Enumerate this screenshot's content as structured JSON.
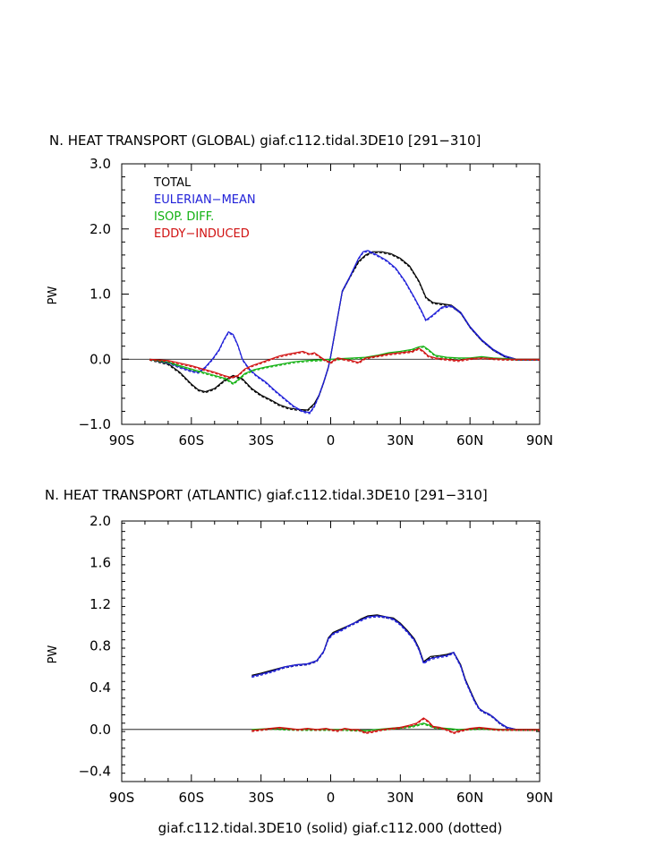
{
  "footer": "giaf.c112.tidal.3DE10 (solid) giaf.c112.000 (dotted)",
  "colors": {
    "total": "#000000",
    "eulerian": "#1f1fd8",
    "isop": "#10b010",
    "eddy": "#d01010"
  },
  "chart_data": [
    {
      "type": "line",
      "title": "N. HEAT TRANSPORT (GLOBAL) giaf.c112.tidal.3DE10 [291−310]",
      "ylabel": "PW",
      "xlim": [
        -90,
        90
      ],
      "ylim": [
        -1.0,
        3.0
      ],
      "xticks": [
        -90,
        -60,
        -30,
        0,
        30,
        60,
        90
      ],
      "xticklabels": [
        "90S",
        "60S",
        "30S",
        "0",
        "30N",
        "60N",
        "90N"
      ],
      "yticks": [
        -1.0,
        0.0,
        1.0,
        2.0,
        3.0
      ],
      "yticklabels": [
        "−1.0",
        "0.0",
        "1.0",
        "2.0",
        "3.0"
      ],
      "legend": [
        "TOTAL",
        "EULERIAN−MEAN",
        "ISOP. DIFF.",
        "EDDY−INDUCED"
      ],
      "series": [
        {
          "name": "TOTAL",
          "color": "total",
          "x": [
            -78,
            -70,
            -65,
            -60,
            -57,
            -54,
            -50,
            -46,
            -42,
            -38,
            -34,
            -30,
            -26,
            -22,
            -18,
            -14,
            -10,
            -7,
            -5,
            -3,
            -1,
            0,
            2,
            5,
            8,
            12,
            15,
            18,
            22,
            26,
            30,
            34,
            38,
            41,
            44,
            48,
            52,
            56,
            60,
            65,
            70,
            75,
            80,
            85,
            90
          ],
          "y": [
            0.0,
            -0.07,
            -0.2,
            -0.38,
            -0.47,
            -0.5,
            -0.45,
            -0.33,
            -0.25,
            -0.3,
            -0.45,
            -0.55,
            -0.62,
            -0.7,
            -0.75,
            -0.77,
            -0.78,
            -0.68,
            -0.55,
            -0.35,
            -0.12,
            0.05,
            0.45,
            1.05,
            1.25,
            1.5,
            1.6,
            1.65,
            1.65,
            1.62,
            1.55,
            1.43,
            1.2,
            0.95,
            0.87,
            0.85,
            0.83,
            0.72,
            0.5,
            0.3,
            0.15,
            0.05,
            0.0,
            0.0,
            0.0
          ]
        },
        {
          "name": "EULERIAN−MEAN",
          "color": "eulerian",
          "x": [
            -78,
            -70,
            -65,
            -60,
            -57,
            -54,
            -51,
            -48,
            -46,
            -44,
            -42,
            -40,
            -38,
            -35,
            -32,
            -28,
            -24,
            -20,
            -16,
            -12,
            -9,
            -7,
            -5,
            -3,
            -1,
            0,
            2,
            5,
            8,
            12,
            14,
            16,
            20,
            24,
            28,
            32,
            36,
            39,
            41,
            44,
            48,
            52,
            56,
            60,
            65,
            70,
            75,
            80,
            85,
            90
          ],
          "y": [
            0.0,
            -0.05,
            -0.12,
            -0.18,
            -0.2,
            -0.12,
            0.0,
            0.15,
            0.3,
            0.42,
            0.38,
            0.22,
            0.0,
            -0.15,
            -0.25,
            -0.35,
            -0.48,
            -0.6,
            -0.72,
            -0.8,
            -0.82,
            -0.72,
            -0.55,
            -0.35,
            -0.12,
            0.05,
            0.45,
            1.05,
            1.25,
            1.55,
            1.65,
            1.67,
            1.6,
            1.52,
            1.4,
            1.2,
            0.95,
            0.75,
            0.6,
            0.68,
            0.8,
            0.82,
            0.72,
            0.5,
            0.3,
            0.15,
            0.05,
            0.0,
            0.0,
            0.0
          ]
        },
        {
          "name": "ISOP. DIFF.",
          "color": "isop",
          "x": [
            -78,
            -70,
            -65,
            -60,
            -55,
            -50,
            -45,
            -42,
            -40,
            -37,
            -33,
            -28,
            -22,
            -16,
            -10,
            -5,
            0,
            5,
            10,
            15,
            20,
            25,
            30,
            35,
            38,
            40,
            42,
            45,
            50,
            55,
            60,
            65,
            70,
            75,
            80,
            90
          ],
          "y": [
            0.0,
            -0.04,
            -0.1,
            -0.15,
            -0.2,
            -0.25,
            -0.3,
            -0.37,
            -0.32,
            -0.22,
            -0.16,
            -0.12,
            -0.08,
            -0.04,
            -0.02,
            -0.01,
            0.0,
            0.01,
            0.02,
            0.03,
            0.06,
            0.1,
            0.12,
            0.15,
            0.19,
            0.2,
            0.15,
            0.06,
            0.03,
            0.02,
            0.02,
            0.04,
            0.02,
            0.01,
            0.0,
            0.0
          ]
        },
        {
          "name": "EDDY−INDUCED",
          "color": "eddy",
          "x": [
            -78,
            -70,
            -65,
            -60,
            -55,
            -50,
            -46,
            -43,
            -40,
            -37,
            -34,
            -30,
            -26,
            -22,
            -18,
            -15,
            -12,
            -9,
            -7,
            -5,
            -3,
            0,
            3,
            6,
            9,
            12,
            15,
            20,
            25,
            30,
            35,
            38,
            40,
            42,
            45,
            50,
            55,
            60,
            65,
            70,
            75,
            80,
            90
          ],
          "y": [
            0.0,
            -0.02,
            -0.06,
            -0.1,
            -0.15,
            -0.2,
            -0.25,
            -0.28,
            -0.25,
            -0.15,
            -0.1,
            -0.05,
            0.0,
            0.05,
            0.08,
            0.1,
            0.12,
            0.08,
            0.1,
            0.05,
            0.0,
            -0.05,
            0.02,
            0.0,
            -0.02,
            -0.05,
            0.02,
            0.05,
            0.08,
            0.1,
            0.12,
            0.17,
            0.12,
            0.05,
            0.02,
            0.0,
            -0.02,
            0.01,
            0.02,
            0.01,
            0.0,
            0.0,
            0.0
          ]
        }
      ]
    },
    {
      "type": "line",
      "title": "N. HEAT TRANSPORT (ATLANTIC) giaf.c112.tidal.3DE10 [291−310]",
      "ylabel": "PW",
      "xlim": [
        -90,
        90
      ],
      "ylim": [
        -0.5,
        2.0
      ],
      "xticks": [
        -90,
        -60,
        -30,
        0,
        30,
        60,
        90
      ],
      "xticklabels": [
        "90S",
        "60S",
        "30S",
        "0",
        "30N",
        "60N",
        "90N"
      ],
      "yticks": [
        -0.4,
        0.0,
        0.4,
        0.8,
        1.2,
        1.6,
        2.0
      ],
      "yticklabels": [
        "−0.4",
        "0.0",
        "0.4",
        "0.8",
        "1.2",
        "1.6",
        "2.0"
      ],
      "series": [
        {
          "name": "TOTAL",
          "color": "total",
          "x": [
            -34,
            -30,
            -25,
            -20,
            -15,
            -10,
            -6,
            -3,
            -1,
            1,
            3,
            5,
            8,
            10,
            13,
            16,
            20,
            24,
            27,
            30,
            33,
            36,
            38,
            40,
            43,
            47,
            50,
            53,
            56,
            58,
            60,
            62,
            64,
            66,
            68,
            70,
            73,
            76,
            80,
            85,
            90
          ],
          "y": [
            0.52,
            0.54,
            0.57,
            0.6,
            0.62,
            0.63,
            0.66,
            0.75,
            0.88,
            0.93,
            0.95,
            0.97,
            1.0,
            1.02,
            1.06,
            1.09,
            1.1,
            1.08,
            1.07,
            1.02,
            0.95,
            0.87,
            0.78,
            0.65,
            0.7,
            0.71,
            0.72,
            0.74,
            0.62,
            0.48,
            0.38,
            0.28,
            0.2,
            0.17,
            0.15,
            0.12,
            0.06,
            0.02,
            0.0,
            0.0,
            0.0
          ]
        },
        {
          "name": "EULERIAN−MEAN",
          "color": "eulerian",
          "x": [
            -34,
            -30,
            -25,
            -20,
            -15,
            -10,
            -6,
            -3,
            -1,
            1,
            3,
            5,
            8,
            10,
            13,
            16,
            20,
            24,
            27,
            30,
            33,
            36,
            38,
            40,
            43,
            47,
            50,
            53,
            56,
            58,
            60,
            62,
            64,
            66,
            68,
            70,
            73,
            76,
            80,
            85,
            90
          ],
          "y": [
            0.51,
            0.53,
            0.56,
            0.6,
            0.62,
            0.63,
            0.66,
            0.75,
            0.87,
            0.92,
            0.94,
            0.96,
            1.0,
            1.02,
            1.05,
            1.08,
            1.09,
            1.08,
            1.06,
            1.01,
            0.94,
            0.86,
            0.77,
            0.64,
            0.68,
            0.7,
            0.71,
            0.74,
            0.61,
            0.47,
            0.37,
            0.27,
            0.2,
            0.17,
            0.15,
            0.12,
            0.06,
            0.02,
            0.0,
            0.0,
            0.0
          ]
        },
        {
          "name": "ISOP. DIFF.",
          "color": "isop",
          "x": [
            -34,
            -25,
            -15,
            -5,
            5,
            15,
            25,
            35,
            40,
            45,
            55,
            65,
            75,
            90
          ],
          "y": [
            0.0,
            0.01,
            0.0,
            0.0,
            0.0,
            -0.01,
            0.01,
            0.03,
            0.06,
            0.02,
            0.0,
            0.01,
            0.0,
            0.0
          ]
        },
        {
          "name": "EDDY−INDUCED",
          "color": "eddy",
          "x": [
            -34,
            -30,
            -26,
            -22,
            -18,
            -14,
            -10,
            -6,
            -2,
            0,
            3,
            6,
            9,
            12,
            15,
            18,
            22,
            26,
            30,
            34,
            37,
            40,
            42,
            44,
            47,
            50,
            53,
            56,
            60,
            64,
            68,
            72,
            76,
            80,
            90
          ],
          "y": [
            -0.01,
            0.0,
            0.01,
            0.02,
            0.01,
            0.0,
            0.01,
            0.0,
            0.01,
            0.0,
            -0.01,
            0.01,
            0.0,
            0.0,
            -0.03,
            -0.02,
            0.0,
            0.01,
            0.02,
            0.04,
            0.06,
            0.11,
            0.08,
            0.03,
            0.02,
            0.0,
            -0.03,
            -0.01,
            0.01,
            0.02,
            0.01,
            0.0,
            0.0,
            0.0,
            0.0
          ]
        }
      ]
    }
  ]
}
